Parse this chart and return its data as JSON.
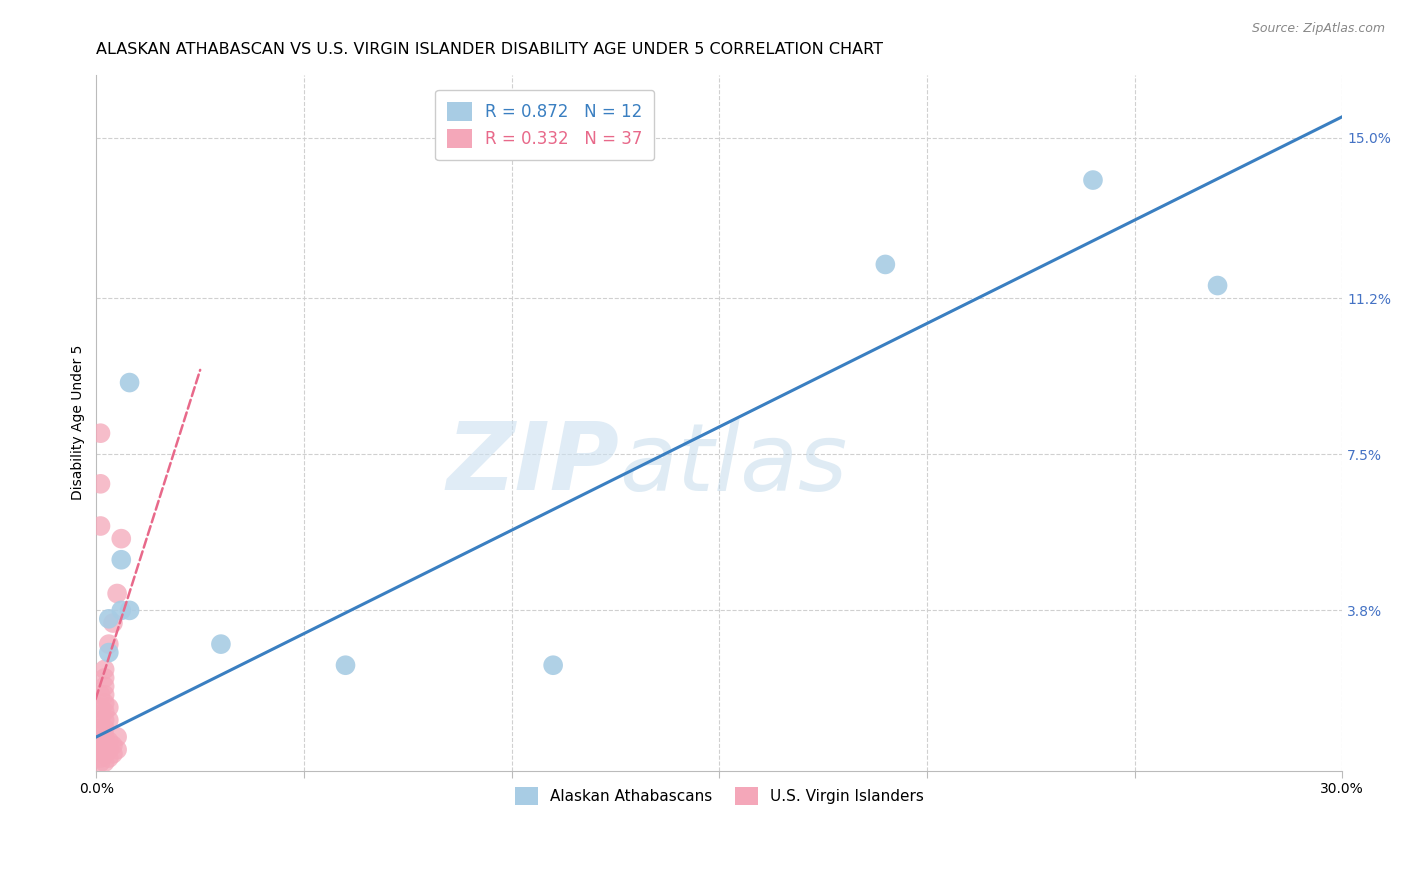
{
  "title": "ALASKAN ATHABASCAN VS U.S. VIRGIN ISLANDER DISABILITY AGE UNDER 5 CORRELATION CHART",
  "source": "Source: ZipAtlas.com",
  "ylabel": "Disability Age Under 5",
  "xlim": [
    0.0,
    0.3
  ],
  "ylim": [
    0.0,
    0.165
  ],
  "xticks": [
    0.0,
    0.05,
    0.1,
    0.15,
    0.2,
    0.25,
    0.3
  ],
  "xticklabels": [
    "0.0%",
    "",
    "",
    "",
    "",
    "",
    "30.0%"
  ],
  "yticks_right": [
    0.038,
    0.075,
    0.112,
    0.15
  ],
  "ytick_labels_right": [
    "3.8%",
    "7.5%",
    "11.2%",
    "15.0%"
  ],
  "blue_scatter": [
    [
      0.003,
      0.036
    ],
    [
      0.003,
      0.028
    ],
    [
      0.006,
      0.05
    ],
    [
      0.006,
      0.038
    ],
    [
      0.008,
      0.038
    ],
    [
      0.008,
      0.092
    ],
    [
      0.03,
      0.03
    ],
    [
      0.06,
      0.025
    ],
    [
      0.11,
      0.025
    ],
    [
      0.19,
      0.12
    ],
    [
      0.24,
      0.14
    ],
    [
      0.27,
      0.115
    ]
  ],
  "pink_scatter": [
    [
      0.001,
      0.002
    ],
    [
      0.001,
      0.003
    ],
    [
      0.001,
      0.005
    ],
    [
      0.001,
      0.006
    ],
    [
      0.001,
      0.007
    ],
    [
      0.001,
      0.01
    ],
    [
      0.001,
      0.012
    ],
    [
      0.001,
      0.015
    ],
    [
      0.001,
      0.018
    ],
    [
      0.002,
      0.002
    ],
    [
      0.002,
      0.004
    ],
    [
      0.002,
      0.006
    ],
    [
      0.002,
      0.008
    ],
    [
      0.002,
      0.01
    ],
    [
      0.002,
      0.012
    ],
    [
      0.002,
      0.014
    ],
    [
      0.002,
      0.016
    ],
    [
      0.002,
      0.018
    ],
    [
      0.002,
      0.02
    ],
    [
      0.002,
      0.022
    ],
    [
      0.002,
      0.024
    ],
    [
      0.003,
      0.003
    ],
    [
      0.003,
      0.005
    ],
    [
      0.003,
      0.007
    ],
    [
      0.003,
      0.012
    ],
    [
      0.003,
      0.015
    ],
    [
      0.003,
      0.03
    ],
    [
      0.004,
      0.004
    ],
    [
      0.004,
      0.006
    ],
    [
      0.004,
      0.035
    ],
    [
      0.005,
      0.005
    ],
    [
      0.005,
      0.008
    ],
    [
      0.005,
      0.042
    ],
    [
      0.006,
      0.055
    ],
    [
      0.001,
      0.068
    ],
    [
      0.001,
      0.058
    ],
    [
      0.001,
      0.08
    ]
  ],
  "blue_line_x": [
    0.0,
    0.3
  ],
  "blue_line_y": [
    0.008,
    0.155
  ],
  "pink_line_x": [
    -0.005,
    0.025
  ],
  "pink_line_y": [
    0.002,
    0.095
  ],
  "blue_color": "#a8cce4",
  "pink_color": "#f4a7b9",
  "blue_line_color": "#3a7fc1",
  "pink_line_color": "#e8698a",
  "legend_blue_r": "R = 0.872",
  "legend_blue_n": "N = 12",
  "legend_pink_r": "R = 0.332",
  "legend_pink_n": "N = 37",
  "watermark_zip": "ZIP",
  "watermark_atlas": "atlas",
  "background_color": "#ffffff",
  "grid_color": "#d0d0d0",
  "title_fontsize": 11.5,
  "axis_label_fontsize": 10,
  "tick_fontsize": 10,
  "right_tick_color": "#4472c4",
  "scatter_size": 200
}
